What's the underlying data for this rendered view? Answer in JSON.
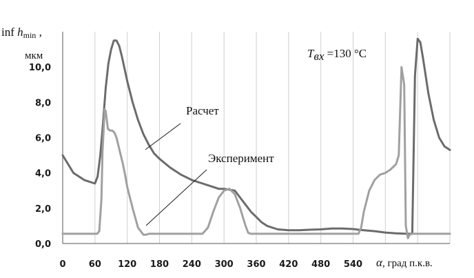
{
  "chart_data": {
    "type": "line",
    "ylabel_line1_prefix": "inf ",
    "ylabel_line1_var": "h",
    "ylabel_line1_sub": "min",
    "ylabel_line1_suffix": " ,",
    "ylabel_line2": "мкм",
    "xlabel_var": "α",
    "xlabel_rest": ", град п.к.в.",
    "condition_var": "T",
    "condition_sub": "вх",
    "condition_rest": " =130 °C",
    "xlim": [
      0,
      720
    ],
    "ylim": [
      0,
      12
    ],
    "x_ticks": [
      0,
      60,
      120,
      180,
      240,
      300,
      360,
      420,
      480,
      540
    ],
    "x_tick_labels": [
      "0",
      "60",
      "120",
      "180",
      "240",
      "300",
      "360",
      "420",
      "480",
      "540"
    ],
    "y_ticks": [
      0,
      2,
      4,
      6,
      8,
      10
    ],
    "y_tick_labels": [
      "0,0",
      "2,0",
      "4,0",
      "6,0",
      "8,0",
      "10,0"
    ],
    "grid": "vertical",
    "annotations": [
      "Расчет",
      "Эксперимент"
    ],
    "colors": {
      "raschet": "#6b6b6b",
      "experiment": "#a0a0a0",
      "axis": "#555555",
      "grid": "#cfcfcf"
    },
    "series": [
      {
        "name": "Расчет",
        "x": [
          0,
          10,
          20,
          30,
          40,
          50,
          60,
          65,
          70,
          75,
          80,
          85,
          90,
          95,
          100,
          105,
          110,
          120,
          130,
          140,
          150,
          160,
          170,
          180,
          200,
          220,
          240,
          260,
          280,
          290,
          300,
          310,
          320,
          330,
          340,
          350,
          360,
          370,
          380,
          390,
          400,
          420,
          440,
          460,
          480,
          500,
          520,
          540,
          550,
          560,
          580,
          600,
          620,
          640,
          650,
          655,
          660,
          665,
          670,
          680,
          690,
          700,
          710,
          720
        ],
        "values": [
          5.0,
          4.5,
          4.0,
          3.8,
          3.6,
          3.5,
          3.4,
          3.8,
          5.0,
          6.8,
          8.8,
          10.2,
          11.0,
          11.5,
          11.5,
          11.2,
          10.6,
          9.2,
          8.0,
          7.0,
          6.2,
          5.6,
          5.1,
          4.8,
          4.3,
          3.9,
          3.6,
          3.4,
          3.2,
          3.1,
          3.1,
          3.05,
          3.0,
          2.6,
          2.2,
          1.8,
          1.5,
          1.2,
          1.0,
          0.9,
          0.8,
          0.75,
          0.75,
          0.78,
          0.8,
          0.85,
          0.85,
          0.82,
          0.78,
          0.75,
          0.7,
          0.62,
          0.58,
          0.55,
          0.55,
          9.5,
          11.6,
          11.4,
          10.5,
          8.5,
          7.0,
          6.0,
          5.5,
          5.3
        ]
      },
      {
        "name": "Эксперимент",
        "x": [
          0,
          30,
          60,
          64,
          68,
          72,
          74,
          78,
          80,
          84,
          88,
          92,
          96,
          100,
          104,
          108,
          112,
          116,
          120,
          130,
          140,
          150,
          155,
          160,
          200,
          260,
          270,
          280,
          290,
          300,
          310,
          320,
          330,
          340,
          345,
          350,
          400,
          500,
          550,
          555,
          560,
          570,
          580,
          590,
          600,
          610,
          620,
          625,
          630,
          635,
          638,
          642,
          645,
          650,
          720
        ],
        "values": [
          0.55,
          0.55,
          0.55,
          0.55,
          0.7,
          2.5,
          5.2,
          7.6,
          7.5,
          6.5,
          6.4,
          6.4,
          6.3,
          6.0,
          5.5,
          5.0,
          4.5,
          3.9,
          3.2,
          2.0,
          0.9,
          0.5,
          0.5,
          0.55,
          0.55,
          0.55,
          0.9,
          1.8,
          2.6,
          3.0,
          3.1,
          2.8,
          2.0,
          1.0,
          0.6,
          0.55,
          0.55,
          0.55,
          0.55,
          0.9,
          1.8,
          3.0,
          3.6,
          3.9,
          4.0,
          4.2,
          4.5,
          5.0,
          10.0,
          9.0,
          1.0,
          0.3,
          0.5,
          0.55,
          0.55
        ]
      }
    ]
  }
}
